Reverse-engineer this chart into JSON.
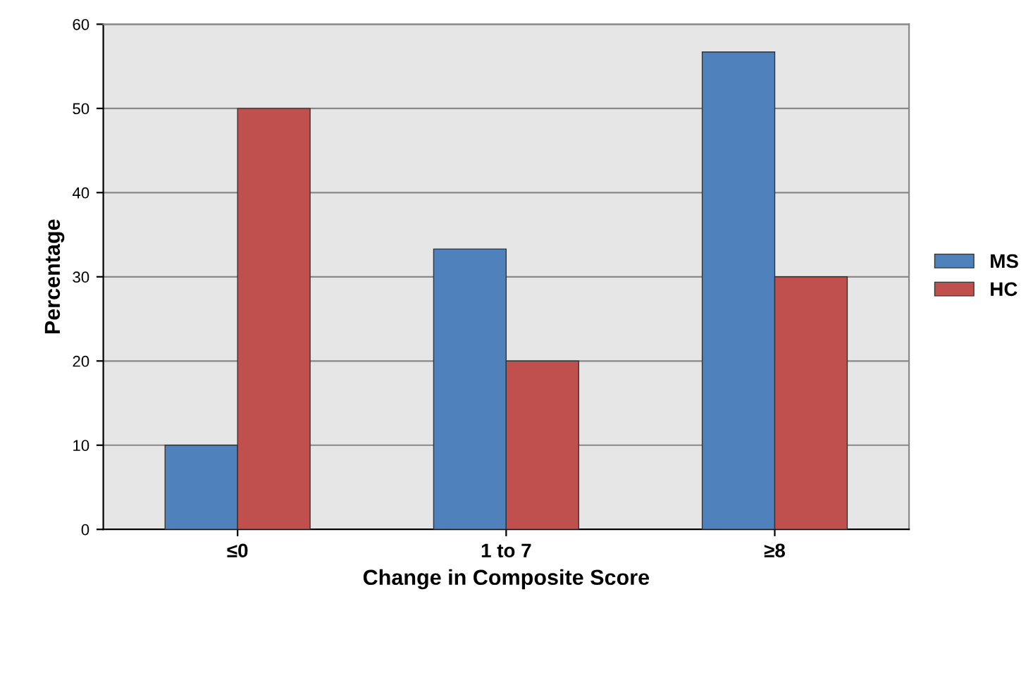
{
  "chart_data": {
    "type": "bar",
    "xlabel": "Change in Composite Score",
    "ylabel": "Percentage",
    "categories": [
      "≤0",
      "1 to 7",
      "≥8"
    ],
    "series": [
      {
        "name": "MS",
        "color": "#4f81bd",
        "values": [
          10,
          33.3,
          56.7
        ]
      },
      {
        "name": "HC",
        "color": "#c0504d",
        "values": [
          50,
          20,
          30
        ]
      }
    ],
    "ylim": [
      0,
      60
    ],
    "yticks": [
      0,
      10,
      20,
      30,
      40,
      50,
      60
    ],
    "grid": "y",
    "legend": "right"
  }
}
